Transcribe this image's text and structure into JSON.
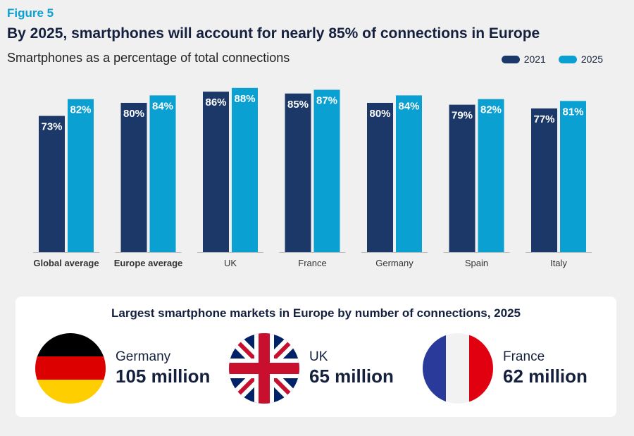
{
  "figure_label": "Figure 5",
  "title": "By 2025, smartphones will account for nearly 85% of connections in Europe",
  "subtitle": "Smartphones as a percentage of total connections",
  "colors": {
    "s2021": "#1b3869",
    "s2025": "#0aa0d2"
  },
  "chart_data": {
    "type": "bar",
    "title": "By 2025, smartphones will account for nearly 85% of connections in Europe",
    "subtitle": "Smartphones as a percentage of total connections",
    "categories": [
      "Global average",
      "Europe average",
      "UK",
      "France",
      "Germany",
      "Spain",
      "Italy"
    ],
    "bold_categories": [
      "Global average",
      "Europe average"
    ],
    "series": [
      {
        "name": "2021",
        "values": [
          73,
          80,
          86,
          85,
          80,
          79,
          77
        ]
      },
      {
        "name": "2025",
        "values": [
          82,
          84,
          88,
          87,
          84,
          82,
          81
        ]
      }
    ],
    "value_suffix": "%",
    "xlabel": "",
    "ylabel": "",
    "ylim": [
      0,
      100
    ],
    "grid": false,
    "legend_position": "top-right"
  },
  "markets": {
    "title": "Largest smartphone markets in Europe by number of connections, 2025",
    "items": [
      {
        "flag": "germany-flag-icon",
        "country": "Germany",
        "value": "105 million"
      },
      {
        "flag": "uk-flag-icon",
        "country": "UK",
        "value": "65 million"
      },
      {
        "flag": "france-flag-icon",
        "country": "France",
        "value": "62 million"
      }
    ]
  }
}
